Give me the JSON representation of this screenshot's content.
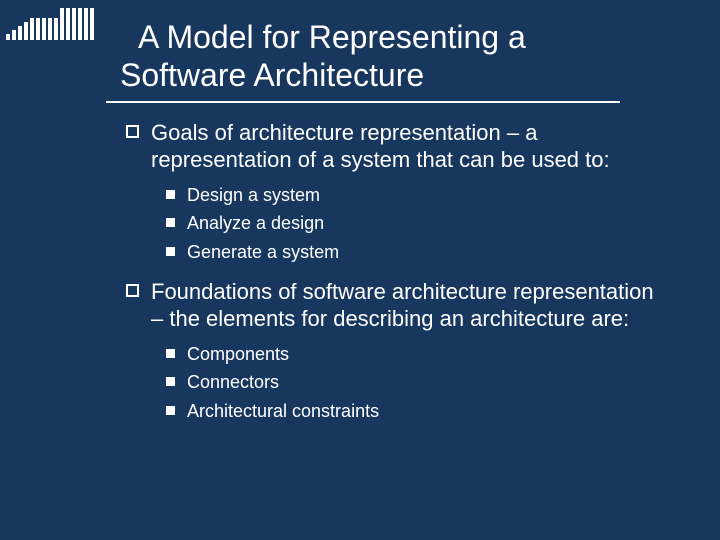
{
  "slide": {
    "title": "A Model for Representing a Software Architecture",
    "background_color": "#17375e",
    "text_color": "#ffffff",
    "title_fontsize": 32,
    "body_fontsize": 22,
    "sub_fontsize": 18,
    "deco_bar_heights": [
      6,
      10,
      14,
      18,
      22,
      22,
      22,
      22,
      22,
      32,
      32,
      32,
      32,
      32,
      32
    ],
    "bullets": [
      {
        "text": "Goals of architecture representation – a representation of a system that can be used to:",
        "sub": [
          "Design a system",
          "Analyze a design",
          "Generate a system"
        ]
      },
      {
        "text": "Foundations of software architecture representation – the elements for describing an architecture are:",
        "sub": [
          "Components",
          "Connectors",
          "Architectural constraints"
        ]
      }
    ]
  }
}
